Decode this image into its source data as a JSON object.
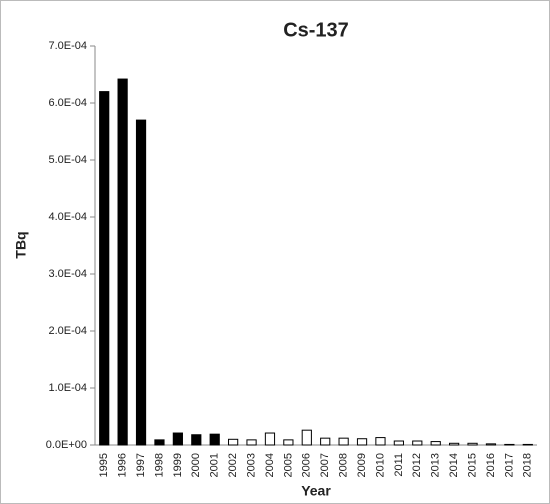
{
  "chart_data": {
    "type": "bar",
    "title": "Cs-137",
    "y_label": "TBq",
    "x_label": "Year",
    "categories": [
      "1995",
      "1996",
      "1997",
      "1998",
      "1999",
      "2000",
      "2001",
      "2002",
      "2003",
      "2004",
      "2005",
      "2006",
      "2007",
      "2008",
      "2009",
      "2010",
      "2011",
      "2012",
      "2013",
      "2014",
      "2015",
      "2016",
      "2017",
      "2018"
    ],
    "values": [
      0.00062,
      0.000642,
      0.00057,
      9e-06,
      2.1e-05,
      1.8e-05,
      1.9e-05,
      1e-05,
      9e-06,
      2.1e-05,
      9e-06,
      2.6e-05,
      1.2e-05,
      1.2e-05,
      1.1e-05,
      1.3e-05,
      7e-06,
      7e-06,
      6e-06,
      3e-06,
      3e-06,
      2e-06,
      1e-06,
      1e-06
    ],
    "colors": [
      "#000000",
      "#000000",
      "#000000",
      "#000000",
      "#000000",
      "#000000",
      "#000000",
      "#ffffff",
      "#ffffff",
      "#ffffff",
      "#ffffff",
      "#ffffff",
      "#ffffff",
      "#ffffff",
      "#ffffff",
      "#ffffff",
      "#ffffff",
      "#ffffff",
      "#ffffff",
      "#ffffff",
      "#ffffff",
      "#ffffff",
      "#ffffff",
      "#ffffff"
    ],
    "ylim": [
      0,
      0.0007
    ],
    "yticks": [
      {
        "value": 0,
        "label": "0.0E+00"
      },
      {
        "value": 0.0001,
        "label": "1.0E-04"
      },
      {
        "value": 0.0002,
        "label": "2.0E-04"
      },
      {
        "value": 0.0003,
        "label": "3.0E-04"
      },
      {
        "value": 0.0004,
        "label": "4.0E-04"
      },
      {
        "value": 0.0005,
        "label": "5.0E-04"
      },
      {
        "value": 0.0006,
        "label": "6.0E-04"
      },
      {
        "value": 0.0007,
        "label": "7.0E-04"
      }
    ],
    "grid": false
  }
}
